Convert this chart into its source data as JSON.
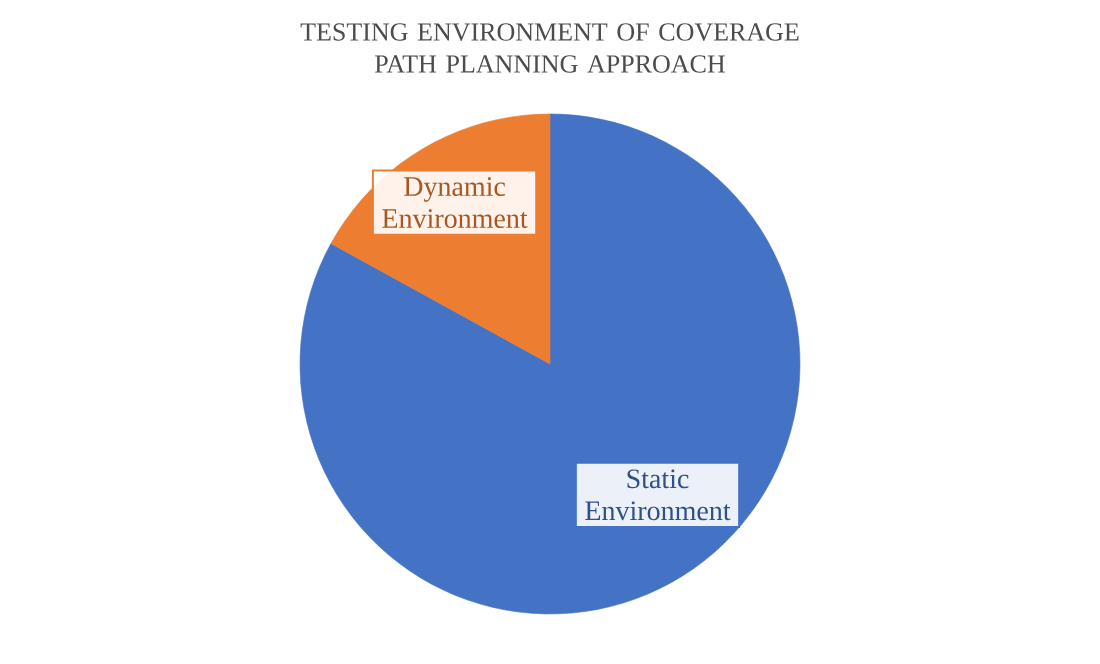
{
  "chart_data": {
    "type": "pie",
    "title": "TESTING ENVIRONMENT OF COVERAGE PATH PLANNING APPROACH",
    "categories": [
      "Static Environment",
      "Dynamic Environment"
    ],
    "values": [
      83,
      17
    ],
    "colors": [
      "#4472c4",
      "#ed7d31"
    ]
  }
}
